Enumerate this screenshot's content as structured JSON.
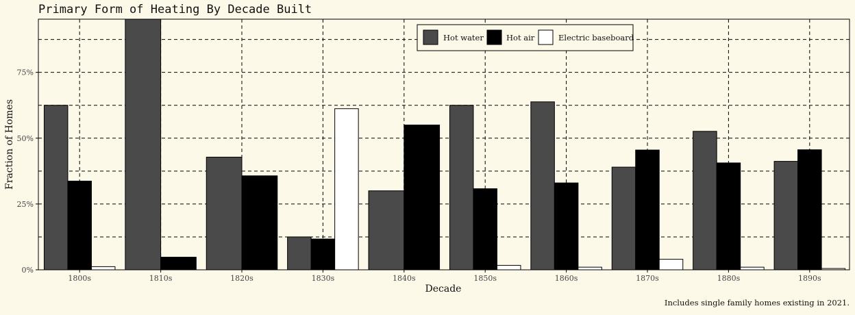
{
  "chart_data": {
    "type": "bar",
    "title": "Primary Form of Heating By Decade Built",
    "xlabel": "Decade",
    "ylabel": "Fraction of Homes",
    "caption": "Includes single family homes existing in 2021.",
    "categories": [
      "1800s",
      "1810s",
      "1820s",
      "1830s",
      "1840s",
      "1850s",
      "1860s",
      "1870s",
      "1880s",
      "1890s"
    ],
    "series": [
      {
        "name": "Hot water",
        "color": "#4a4a4a",
        "values": [
          0.625,
          0.952,
          0.428,
          0.125,
          0.3,
          0.625,
          0.638,
          0.39,
          0.526,
          0.412
        ]
      },
      {
        "name": "Hot air",
        "color": "#000000",
        "values": [
          0.337,
          0.048,
          0.357,
          0.117,
          0.55,
          0.308,
          0.33,
          0.455,
          0.406,
          0.456
        ]
      },
      {
        "name": "Electric baseboard",
        "color": "#ffffff",
        "values": [
          0.012,
          0.0,
          0.0,
          0.612,
          0.0,
          0.017,
          0.01,
          0.04,
          0.01,
          0.005
        ]
      }
    ],
    "ylim": [
      0,
      0.952
    ],
    "yticks": [
      0,
      0.25,
      0.5,
      0.75
    ],
    "ytick_labels": [
      "0%",
      "25%",
      "50%",
      "75%"
    ],
    "grid": true,
    "legend_position": "top-right"
  }
}
